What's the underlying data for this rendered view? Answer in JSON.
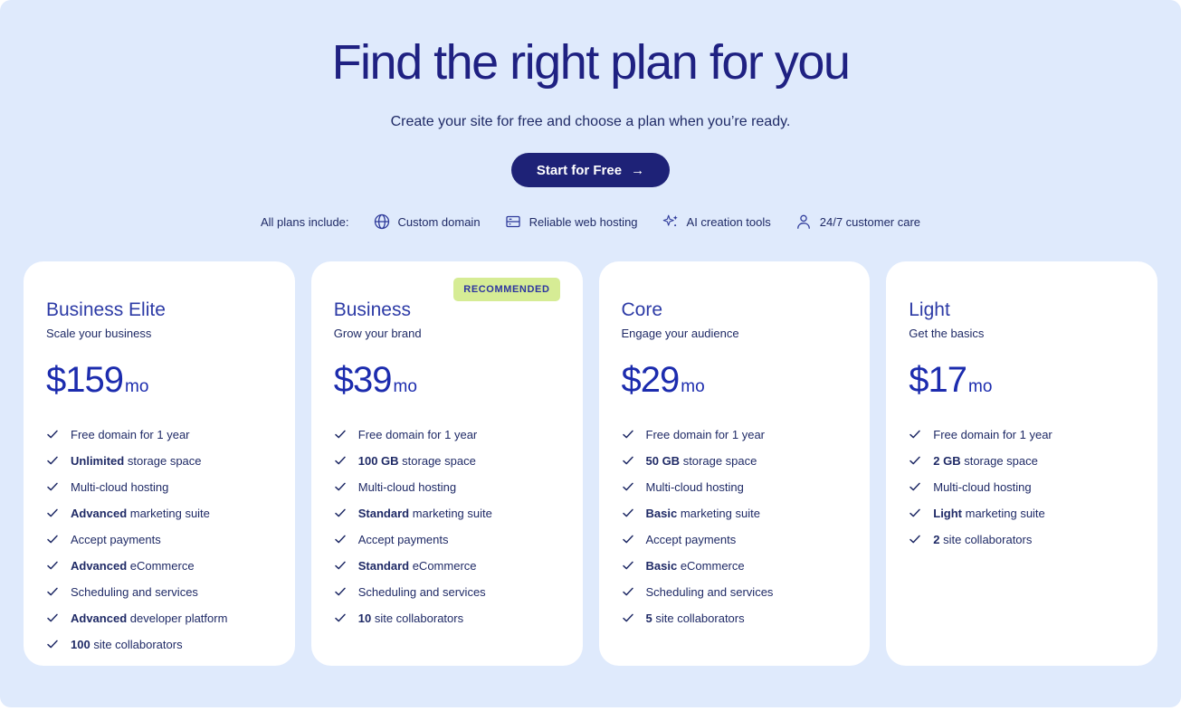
{
  "header": {
    "title": "Find the right plan for you",
    "subtitle": "Create your site for free and choose a plan when you’re ready."
  },
  "cta": {
    "label": "Start for Free",
    "arrow": "→"
  },
  "includes": {
    "label": "All plans include:",
    "items": [
      {
        "icon": "globe-icon",
        "label": "Custom domain"
      },
      {
        "icon": "server-icon",
        "label": "Reliable web hosting"
      },
      {
        "icon": "sparkles-icon",
        "label": "AI creation tools"
      },
      {
        "icon": "person-icon",
        "label": "24/7 customer care"
      }
    ]
  },
  "badge_label": "RECOMMENDED",
  "plans": [
    {
      "name": "Business Elite",
      "tagline": "Scale your business",
      "currency": "$",
      "price": "159",
      "period": "mo",
      "recommended": false,
      "features": [
        {
          "bold": "",
          "text": "Free domain for 1 year"
        },
        {
          "bold": "Unlimited",
          "text": " storage space"
        },
        {
          "bold": "",
          "text": "Multi-cloud hosting"
        },
        {
          "bold": "Advanced",
          "text": " marketing suite"
        },
        {
          "bold": "",
          "text": "Accept payments"
        },
        {
          "bold": "Advanced",
          "text": " eCommerce"
        },
        {
          "bold": "",
          "text": "Scheduling and services"
        },
        {
          "bold": "Advanced",
          "text": " developer platform"
        },
        {
          "bold": "100",
          "text": " site collaborators"
        }
      ]
    },
    {
      "name": "Business",
      "tagline": "Grow your brand",
      "currency": "$",
      "price": "39",
      "period": "mo",
      "recommended": true,
      "features": [
        {
          "bold": "",
          "text": "Free domain for 1 year"
        },
        {
          "bold": "100 GB",
          "text": " storage space"
        },
        {
          "bold": "",
          "text": "Multi-cloud hosting"
        },
        {
          "bold": "Standard",
          "text": " marketing suite"
        },
        {
          "bold": "",
          "text": "Accept payments"
        },
        {
          "bold": "Standard",
          "text": " eCommerce"
        },
        {
          "bold": "",
          "text": "Scheduling and services"
        },
        {
          "bold": "10",
          "text": " site collaborators"
        }
      ]
    },
    {
      "name": "Core",
      "tagline": "Engage your audience",
      "currency": "$",
      "price": "29",
      "period": "mo",
      "recommended": false,
      "features": [
        {
          "bold": "",
          "text": "Free domain for 1 year"
        },
        {
          "bold": "50 GB",
          "text": " storage space"
        },
        {
          "bold": "",
          "text": "Multi-cloud hosting"
        },
        {
          "bold": "Basic",
          "text": " marketing suite"
        },
        {
          "bold": "",
          "text": "Accept payments"
        },
        {
          "bold": "Basic",
          "text": " eCommerce"
        },
        {
          "bold": "",
          "text": "Scheduling and services"
        },
        {
          "bold": "5",
          "text": " site collaborators"
        }
      ]
    },
    {
      "name": "Light",
      "tagline": "Get the basics",
      "currency": "$",
      "price": "17",
      "period": "mo",
      "recommended": false,
      "features": [
        {
          "bold": "",
          "text": "Free domain for 1 year"
        },
        {
          "bold": "2 GB",
          "text": " storage space"
        },
        {
          "bold": "",
          "text": "Multi-cloud hosting"
        },
        {
          "bold": "Light",
          "text": " marketing suite"
        },
        {
          "bold": "2",
          "text": " site collaborators"
        }
      ]
    }
  ],
  "colors": {
    "background": "#dfeafc",
    "card": "#ffffff",
    "heading": "#1f2182",
    "body_text": "#1f2a66",
    "plan_title": "#2d3ba6",
    "price": "#1c2cae",
    "button_bg": "#1e2277",
    "button_text": "#ffffff",
    "badge_bg": "#d6ec95",
    "badge_text": "#2d35a0"
  }
}
